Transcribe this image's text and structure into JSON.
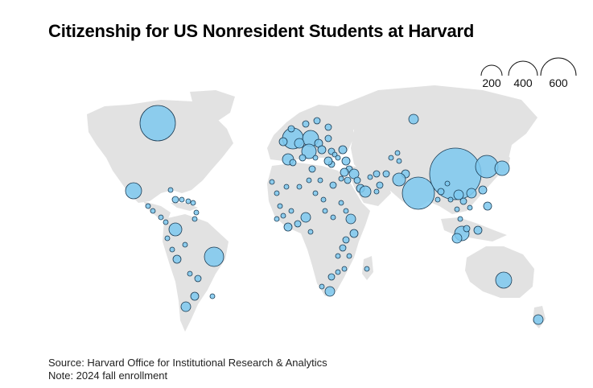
{
  "title": "Citizenship for US Nonresident Students at Harvard",
  "legend": {
    "labels": [
      "200",
      "400",
      "600"
    ]
  },
  "footer": {
    "source": "Source: Harvard Office for Institutional Research & Analytics",
    "note": "Note: 2024 fall enrollment"
  },
  "colors": {
    "land": "#e2e2e2",
    "bubble_fill": "#7cc8ee",
    "bubble_stroke": "#1a3a52",
    "background": "#ffffff"
  }
}
